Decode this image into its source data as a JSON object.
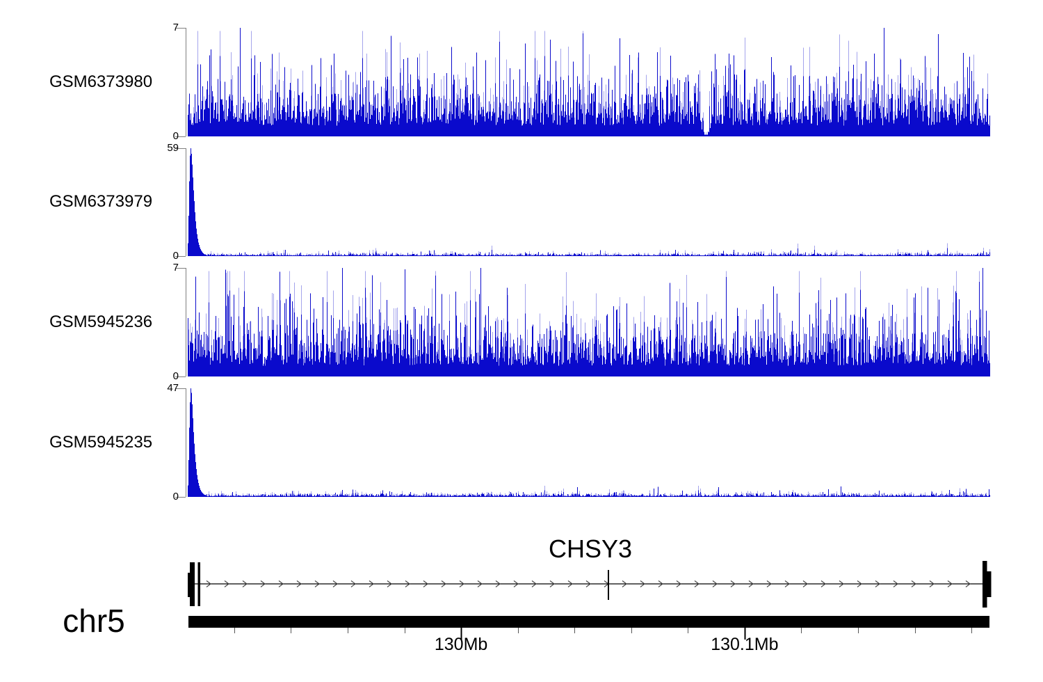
{
  "figure": {
    "kind": "genome coverage tracks over gene model",
    "background": "#ffffff"
  },
  "chart_data": {
    "type": "area",
    "subtype": "genome-browser-coverage-tracks",
    "region": {
      "chrom": "chr5",
      "start_mb": 129.9036,
      "end_mb": 130.1866
    },
    "tracks": [
      {
        "label": "GSM6373980",
        "ymax": 7,
        "ymax_label": "7",
        "y0_label": "0",
        "profile": "dense",
        "seed": 101,
        "notch_frac": 0.6456,
        "description": "dense coverage 0-7 across whole region, frequent spikes 3-5, rare spikes touching 7, brief V-shaped dip to ~0 near 130.10Mb"
      },
      {
        "label": "GSM6373979",
        "ymax": 59,
        "ymax_label": "59",
        "y0_label": "0",
        "profile": "tss_peak",
        "seed": 202,
        "peak_profile": [
          7,
          22,
          41,
          55,
          59,
          56,
          50,
          43,
          36,
          30,
          24,
          19,
          15,
          12,
          9.5,
          7.5,
          6,
          4.8,
          3.8,
          3,
          2.4,
          1.9,
          1.5,
          1.2,
          1,
          0.9
        ],
        "description": "single sharp peak reaching 59 at left edge (~129.904Mb, CHSY3 TSS), low noisy background elsewhere"
      },
      {
        "label": "GSM5945236",
        "ymax": 7,
        "ymax_label": "7",
        "y0_label": "0",
        "profile": "dense",
        "seed": 303,
        "description": "dense coverage 0-7 across whole region, frequent spikes 3-5, rare spikes touching 7"
      },
      {
        "label": "GSM5945235",
        "ymax": 47,
        "ymax_label": "47",
        "y0_label": "0",
        "profile": "tss_peak",
        "seed": 404,
        "peak_profile": [
          5,
          16,
          30,
          41,
          47,
          45,
          40,
          34,
          28,
          23,
          18.5,
          15,
          12,
          9.5,
          7.5,
          6,
          4.8,
          3.8,
          3,
          2.4,
          1.9,
          1.6,
          1.3,
          1.1,
          0.95,
          0.85
        ],
        "description": "single sharp peak reaching 47 at left edge (~129.904Mb, CHSY3 TSS), low noisy background elsewhere"
      }
    ],
    "gene": {
      "name": "CHSY3",
      "chrom_label": "chr5",
      "strand": "+",
      "tss_mb": 129.9045,
      "internal_exon_mb": 130.052,
      "structure": "two exon blocks at left end (~129.904-129.908Mb), long intron with rightward chevron arrows, thin internal exon near 130.052Mb, terminal exon block at ~130.184Mb"
    },
    "ruler": {
      "domain_mb": [
        129.9036,
        130.1866
      ],
      "tick_step_mb": 0.02,
      "first_tick_mb": 129.92,
      "last_tick_mb": 130.18,
      "labels": [
        {
          "mb": 130.0,
          "text": "130Mb"
        },
        {
          "mb": 130.1,
          "text": "130.1Mb"
        }
      ]
    },
    "colors": {
      "signal": "#0a0acc",
      "signal_light": "#5a5adc",
      "axis": "#7f7f7f",
      "ink": "#000000"
    }
  }
}
